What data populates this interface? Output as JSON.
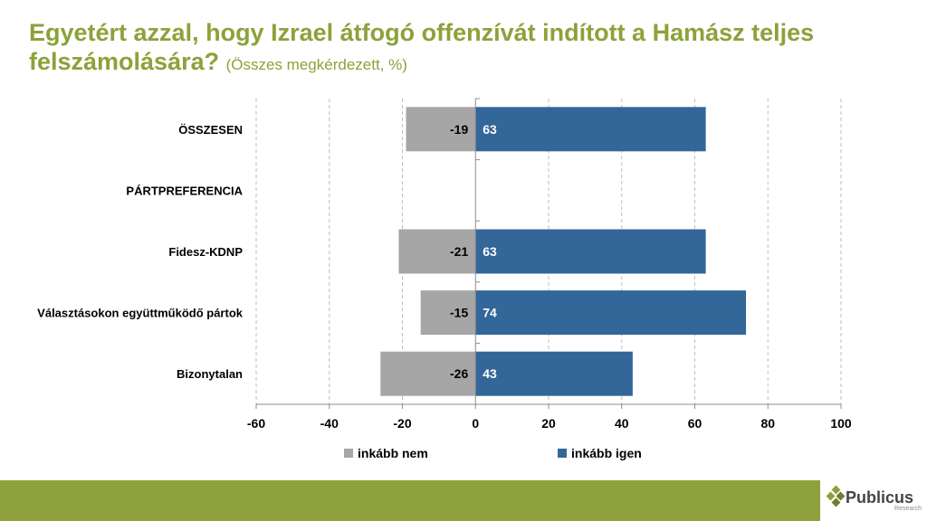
{
  "title": "Egyetért azzal, hogy Izrael átfogó offenzívát indított a Hamász teljes felszámolására?",
  "subtitle": "(Összes megkérdezett, %)",
  "colors": {
    "title": "#8ca23a",
    "nem": "#a6a6a6",
    "igen": "#336699",
    "footer": "#8ea13c"
  },
  "chart_data": {
    "type": "bar",
    "orientation": "horizontal",
    "stacked": "diverging",
    "categories": [
      "ÖSSZESEN",
      "PÁRTPREFERENCIA",
      "Fidesz-KDNP",
      "Választásokon együttműködő pártok",
      "Bizonytalan"
    ],
    "series": [
      {
        "name": "inkább nem",
        "values": [
          -19,
          null,
          -21,
          -15,
          -26
        ]
      },
      {
        "name": "inkább igen",
        "values": [
          63,
          null,
          63,
          74,
          43
        ]
      }
    ],
    "xlim": [
      -60,
      100
    ],
    "xticks": [
      -60,
      -40,
      -20,
      0,
      20,
      40,
      60,
      80,
      100
    ],
    "grid": "vertical dashed",
    "legend": "bottom"
  },
  "logo": {
    "name": "Publicus",
    "sub": "Research"
  }
}
